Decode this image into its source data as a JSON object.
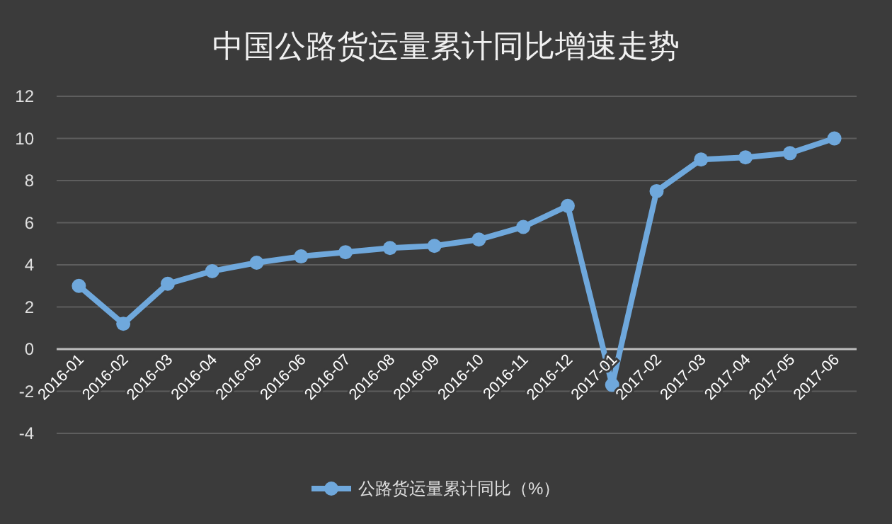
{
  "chart_data": {
    "type": "line",
    "title": "中国公路货运量累计同比增速走势",
    "categories": [
      "2016-01",
      "2016-02",
      "2016-03",
      "2016-04",
      "2016-05",
      "2016-06",
      "2016-07",
      "2016-08",
      "2016-09",
      "2016-10",
      "2016-11",
      "2016-12",
      "2017-01",
      "2017-02",
      "2017-03",
      "2017-04",
      "2017-05",
      "2017-06"
    ],
    "series": [
      {
        "name": "公路货运量累计同比（%）",
        "color": "#6fa8dc",
        "values": [
          3.0,
          1.2,
          3.1,
          3.7,
          4.1,
          4.4,
          4.6,
          4.8,
          4.9,
          5.2,
          5.8,
          6.8,
          -1.7,
          7.5,
          9.0,
          9.1,
          9.3,
          10.0
        ]
      }
    ],
    "ylim": [
      -4,
      12
    ],
    "yticks": [
      -4,
      -2,
      0,
      2,
      4,
      6,
      8,
      10,
      12
    ],
    "grid": "y",
    "legend": "bottom",
    "marker": "circle",
    "line_style": "solid"
  }
}
